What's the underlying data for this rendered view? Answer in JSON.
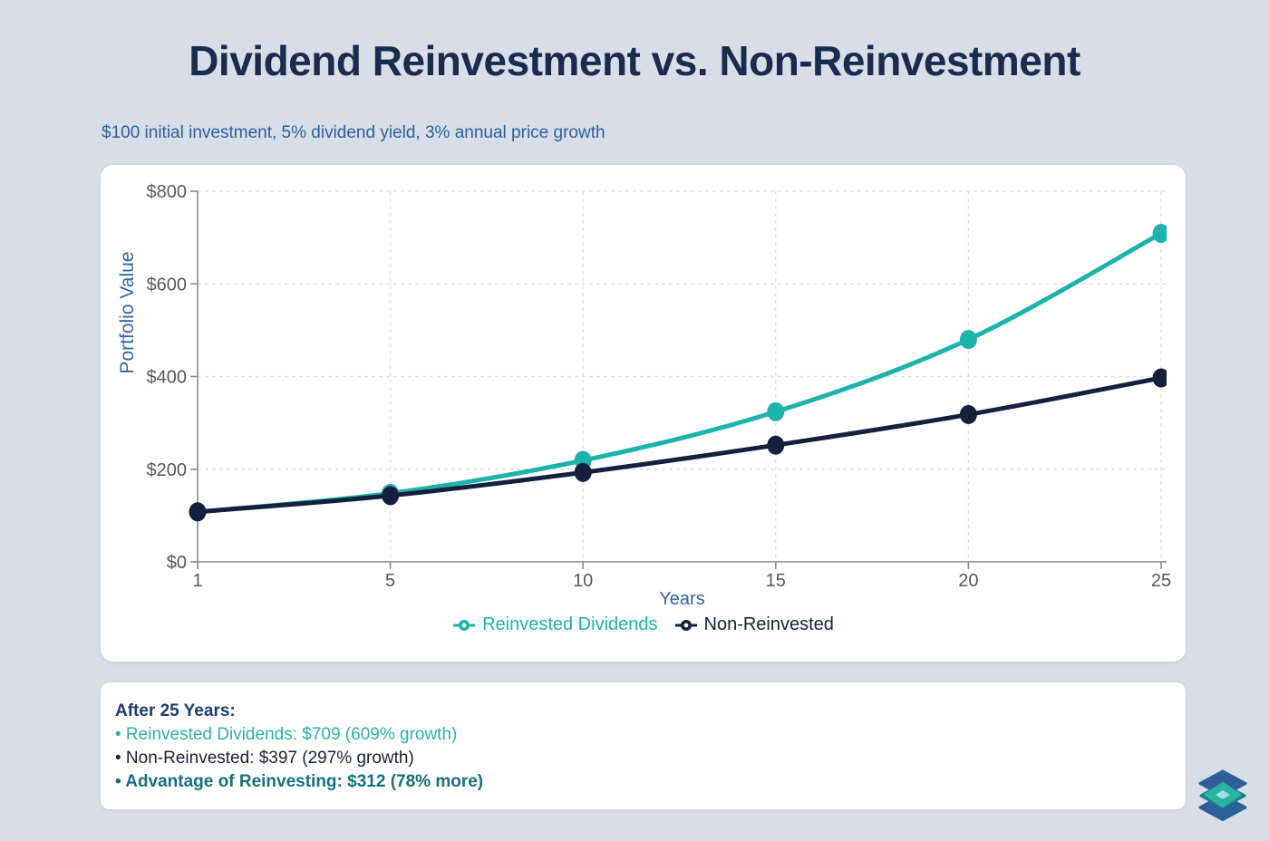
{
  "page": {
    "title": "Dividend Reinvestment vs. Non-Reinvestment",
    "subtitle": "$100 initial investment, 5% dividend yield, 3% annual price growth"
  },
  "chart_data": {
    "type": "line",
    "x": [
      1,
      5,
      10,
      15,
      20,
      25
    ],
    "x_axis_mode": "categorical-even-spacing",
    "xlabel": "Years",
    "ylabel": "Portfolio Value",
    "ylim": [
      0,
      800
    ],
    "yticks": [
      0,
      200,
      400,
      600,
      800
    ],
    "ytick_labels": [
      "$0",
      "$200",
      "$400",
      "$600",
      "$800"
    ],
    "grid": "dashed",
    "legend_position": "bottom",
    "series": [
      {
        "name": "Reinvested Dividends",
        "color": "#1cb3aa",
        "values": [
          108,
          148,
          219,
          324,
          480,
          709
        ]
      },
      {
        "name": "Non-Reinvested",
        "color": "#14203c",
        "values": [
          108,
          143,
          193,
          252,
          318,
          397
        ]
      }
    ],
    "axis_colors": {
      "tick_label": "#595959",
      "axis_line": "#8a8a8a",
      "grid_line": "#e0e0e0",
      "axis_title": "#33659f"
    }
  },
  "summary": {
    "heading": "After 25 Years:",
    "items": [
      {
        "text": "• Reinvested Dividends: $709 (609% growth)",
        "color": "#2eb0a8"
      },
      {
        "text": "• Non-Reinvested: $397 (297% growth)",
        "color": "#1b2233"
      },
      {
        "text": "• Advantage of Reinvesting: $312 (78% more)",
        "color": "#15707f"
      }
    ]
  },
  "logo": {
    "blue": "#2f5f9b",
    "teal": "#29b4a1",
    "dark_teal": "#187f82",
    "light": "#abdbe6"
  }
}
